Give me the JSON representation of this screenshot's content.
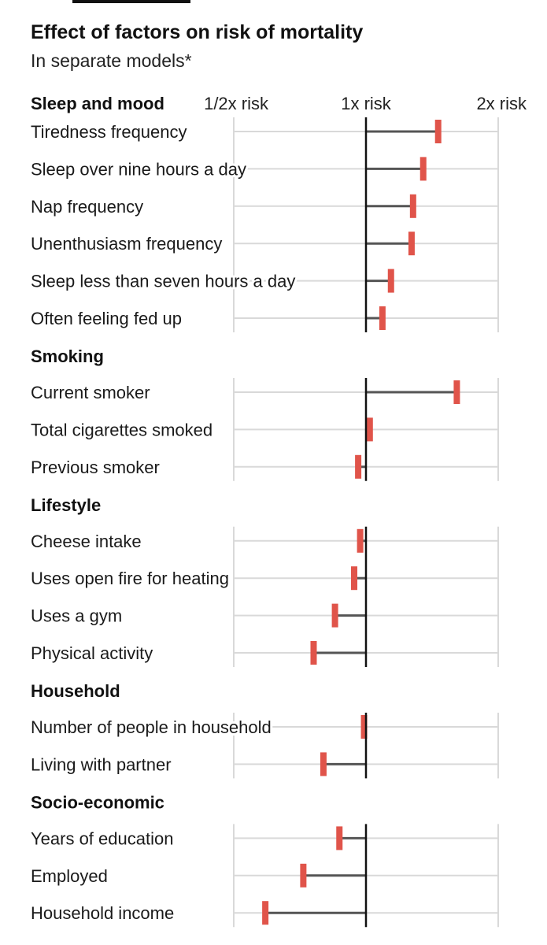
{
  "chart_data": {
    "type": "bar",
    "title": "Effect of factors on risk of mortality",
    "subtitle": "In separate models*",
    "x_scale": "log2",
    "xlim": [
      0.5,
      2
    ],
    "reference": 1,
    "ticks": [
      {
        "value": 0.5,
        "label": "1/2x risk"
      },
      {
        "value": 1,
        "label": "1x risk"
      },
      {
        "value": 2,
        "label": "2x risk"
      }
    ],
    "colors": {
      "marker": "#e0544a",
      "bar": "#555555",
      "grid": "#d9d9d9",
      "axis": "#111111"
    },
    "groups": [
      {
        "name": "Sleep and mood",
        "items": [
          {
            "label": "Tiredness frequency",
            "value": 1.46
          },
          {
            "label": "Sleep over nine hours a day",
            "value": 1.35
          },
          {
            "label": "Nap frequency",
            "value": 1.28
          },
          {
            "label": "Unenthusiasm frequency",
            "value": 1.27
          },
          {
            "label": "Sleep less than seven hours a day",
            "value": 1.14
          },
          {
            "label": "Often feeling fed up",
            "value": 1.09
          }
        ]
      },
      {
        "name": "Smoking",
        "items": [
          {
            "label": "Current smoker",
            "value": 1.61
          },
          {
            "label": "Total cigarettes smoked",
            "value": 1.02
          },
          {
            "label": "Previous smoker",
            "value": 0.96
          }
        ]
      },
      {
        "name": "Lifestyle",
        "items": [
          {
            "label": "Cheese intake",
            "value": 0.97
          },
          {
            "label": "Uses open fire for heating",
            "value": 0.94
          },
          {
            "label": "Uses a gym",
            "value": 0.85
          },
          {
            "label": "Physical activity",
            "value": 0.76
          }
        ]
      },
      {
        "name": "Household",
        "items": [
          {
            "label": "Number of people in household",
            "value": 0.99
          },
          {
            "label": "Living with partner",
            "value": 0.8
          }
        ]
      },
      {
        "name": "Socio-economic",
        "items": [
          {
            "label": "Years of education",
            "value": 0.87
          },
          {
            "label": "Employed",
            "value": 0.72
          },
          {
            "label": "Household income",
            "value": 0.59
          }
        ]
      }
    ]
  }
}
